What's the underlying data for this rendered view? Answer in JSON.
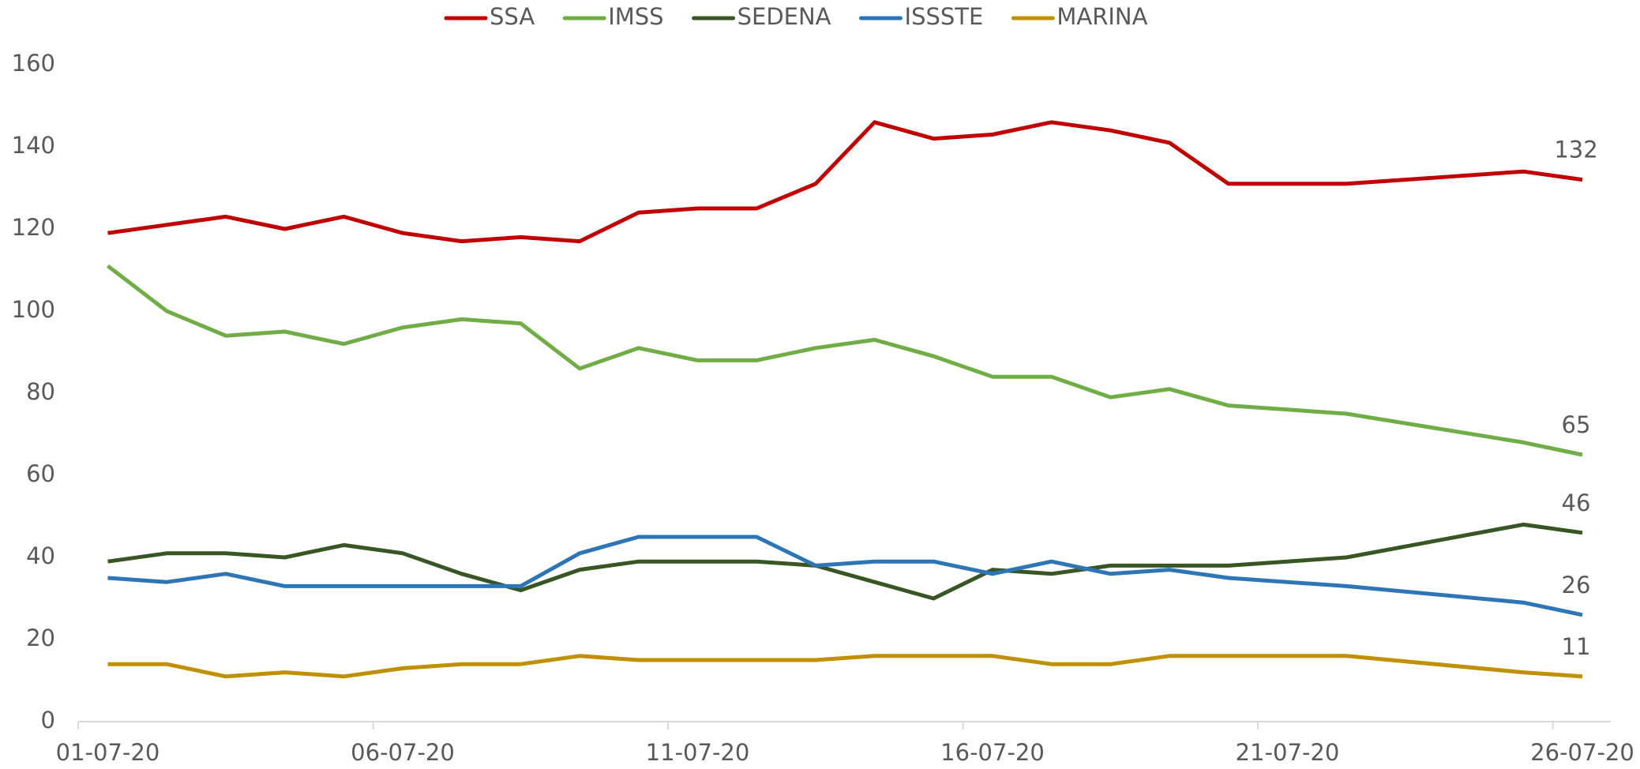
{
  "chart_data": {
    "type": "line",
    "x": [
      "01-07-20",
      "02-07-20",
      "03-07-20",
      "04-07-20",
      "05-07-20",
      "06-07-20",
      "07-07-20",
      "08-07-20",
      "09-07-20",
      "10-07-20",
      "11-07-20",
      "12-07-20",
      "13-07-20",
      "14-07-20",
      "15-07-20",
      "16-07-20",
      "17-07-20",
      "18-07-20",
      "19-07-20",
      "20-07-20",
      "22-07-20",
      "25-07-20",
      "26-07-20"
    ],
    "series": [
      {
        "name": "SSA",
        "color": "#c00000",
        "values": [
          119,
          121,
          123,
          120,
          123,
          119,
          117,
          118,
          117,
          124,
          125,
          125,
          131,
          146,
          142,
          143,
          146,
          144,
          141,
          131,
          131,
          134,
          132
        ]
      },
      {
        "name": "IMSS",
        "color": "#70ad47",
        "values": [
          111,
          100,
          94,
          95,
          92,
          96,
          98,
          97,
          86,
          91,
          88,
          88,
          91,
          93,
          89,
          84,
          84,
          79,
          81,
          77,
          75,
          68,
          65
        ]
      },
      {
        "name": "SEDENA",
        "color": "#375623",
        "values": [
          39,
          41,
          41,
          40,
          43,
          41,
          36,
          32,
          37,
          39,
          39,
          39,
          38,
          34,
          30,
          37,
          36,
          38,
          38,
          38,
          40,
          48,
          46
        ]
      },
      {
        "name": "ISSSTE",
        "color": "#2e75b6",
        "values": [
          35,
          34,
          36,
          33,
          33,
          33,
          33,
          33,
          41,
          45,
          45,
          45,
          38,
          39,
          39,
          36,
          39,
          36,
          37,
          35,
          33,
          29,
          26
        ]
      },
      {
        "name": "MARINA",
        "color": "#bf9000",
        "values": [
          14,
          14,
          11,
          12,
          11,
          13,
          14,
          14,
          16,
          15,
          15,
          15,
          15,
          16,
          16,
          16,
          14,
          14,
          16,
          16,
          16,
          12,
          11
        ]
      }
    ],
    "xticks": [
      "01-07-20",
      "06-07-20",
      "11-07-20",
      "16-07-20",
      "21-07-20",
      "26-07-20"
    ],
    "ylim": [
      0,
      160
    ],
    "yticks": [
      0,
      20,
      40,
      60,
      80,
      100,
      120,
      140,
      160
    ],
    "legend": "top",
    "grid": false
  }
}
